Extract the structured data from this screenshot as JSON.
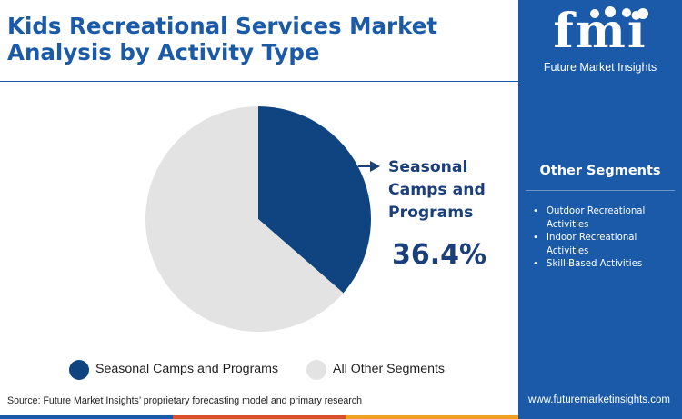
{
  "header": {
    "title": "Kids Recreational Services Market Analysis by Activity Type"
  },
  "brand": {
    "logo_letters": "fmi",
    "logo_text": "Future Market Insights",
    "website": "www.futuremarketinsights.com"
  },
  "other_segments": {
    "title": "Other Segments",
    "items": [
      "Outdoor Recreational Activities",
      "Indoor Recreational Activities",
      "Skill-Based Activities"
    ]
  },
  "callout": {
    "label": "Seasonal Camps and Programs",
    "value": "36.4%"
  },
  "source": "Source: Future Market Insights’ proprietary forecasting model and primary research",
  "colors": {
    "primary": "#1a5aa8",
    "slice_highlight": "#0f4480",
    "slice_rest": "#e3e3e3",
    "text_dark": "#1a3f7a"
  },
  "chart_data": {
    "type": "pie",
    "categories": [
      "Seasonal Camps and Programs",
      "All Other Segments"
    ],
    "values": [
      36.4,
      63.6
    ],
    "title": "Kids Recreational Services Market Analysis by Activity Type",
    "legend_position": "bottom"
  }
}
